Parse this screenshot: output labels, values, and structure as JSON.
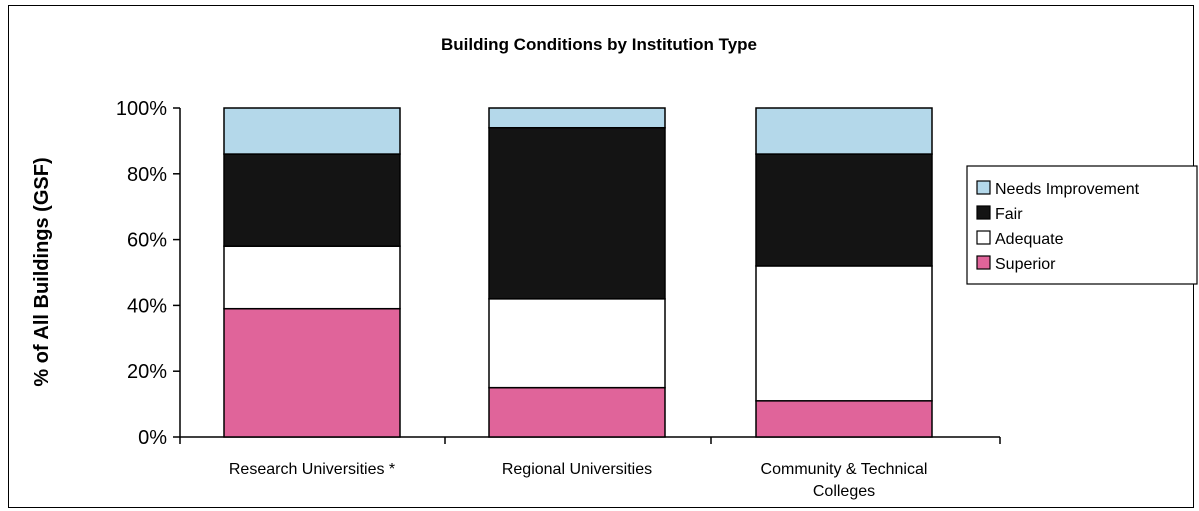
{
  "chart_data": {
    "type": "bar",
    "stacked": true,
    "title": "Building Conditions by Institution Type",
    "ylabel": "% of All Buildings (GSF)",
    "xlabel": "",
    "ylim": [
      0,
      100
    ],
    "yticks": [
      "0%",
      "20%",
      "40%",
      "60%",
      "80%",
      "100%"
    ],
    "categories": [
      [
        "Research Universities *"
      ],
      [
        "Regional Universities"
      ],
      [
        "Community & Technical",
        "Colleges"
      ]
    ],
    "series": [
      {
        "name": "Superior",
        "color": "#e0649a",
        "values": [
          39,
          15,
          11
        ]
      },
      {
        "name": "Adequate",
        "color": "#ffffff",
        "values": [
          19,
          27,
          41
        ]
      },
      {
        "name": "Fair",
        "color": "#141414",
        "values": [
          28,
          52,
          34
        ]
      },
      {
        "name": "Needs Improvement",
        "color": "#b4d8ea",
        "values": [
          14,
          6,
          14
        ]
      }
    ],
    "legend": {
      "position": "right",
      "order": [
        "Needs Improvement",
        "Fair",
        "Adequate",
        "Superior"
      ]
    },
    "grid": false
  }
}
